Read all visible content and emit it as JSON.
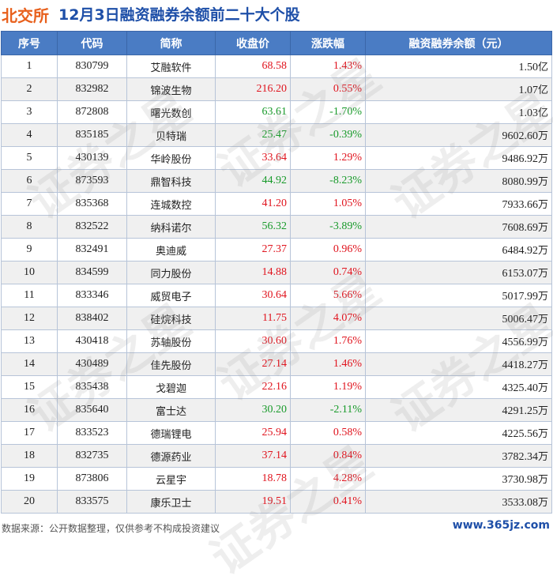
{
  "header": {
    "prefix": "北交所",
    "title": "12月3日融资融券余额前二十大个股"
  },
  "table": {
    "columns": [
      "序号",
      "代码",
      "简称",
      "收盘价",
      "涨跌幅",
      "融资融券余额（元）"
    ],
    "rows": [
      {
        "idx": "1",
        "code": "830799",
        "name": "艾融软件",
        "price": "68.58",
        "pct": "1.43%",
        "amt": "1.50",
        "unit": "亿",
        "dir": "up"
      },
      {
        "idx": "2",
        "code": "832982",
        "name": "锦波生物",
        "price": "216.20",
        "pct": "0.55%",
        "amt": "1.07",
        "unit": "亿",
        "dir": "up"
      },
      {
        "idx": "3",
        "code": "872808",
        "name": "曙光数创",
        "price": "63.61",
        "pct": "-1.70%",
        "amt": "1.03",
        "unit": "亿",
        "dir": "down"
      },
      {
        "idx": "4",
        "code": "835185",
        "name": "贝特瑞",
        "price": "25.47",
        "pct": "-0.39%",
        "amt": "9602.60",
        "unit": "万",
        "dir": "down"
      },
      {
        "idx": "5",
        "code": "430139",
        "name": "华岭股份",
        "price": "33.64",
        "pct": "1.29%",
        "amt": "9486.92",
        "unit": "万",
        "dir": "up"
      },
      {
        "idx": "6",
        "code": "873593",
        "name": "鼎智科技",
        "price": "44.92",
        "pct": "-8.23%",
        "amt": "8080.99",
        "unit": "万",
        "dir": "down"
      },
      {
        "idx": "7",
        "code": "835368",
        "name": "连城数控",
        "price": "41.20",
        "pct": "1.05%",
        "amt": "7933.66",
        "unit": "万",
        "dir": "up"
      },
      {
        "idx": "8",
        "code": "832522",
        "name": "纳科诺尔",
        "price": "56.32",
        "pct": "-3.89%",
        "amt": "7608.69",
        "unit": "万",
        "dir": "down"
      },
      {
        "idx": "9",
        "code": "832491",
        "name": "奥迪威",
        "price": "27.37",
        "pct": "0.96%",
        "amt": "6484.92",
        "unit": "万",
        "dir": "up"
      },
      {
        "idx": "10",
        "code": "834599",
        "name": "同力股份",
        "price": "14.88",
        "pct": "0.74%",
        "amt": "6153.07",
        "unit": "万",
        "dir": "up"
      },
      {
        "idx": "11",
        "code": "833346",
        "name": "威贸电子",
        "price": "30.64",
        "pct": "5.66%",
        "amt": "5017.99",
        "unit": "万",
        "dir": "up"
      },
      {
        "idx": "12",
        "code": "838402",
        "name": "硅烷科技",
        "price": "11.75",
        "pct": "4.07%",
        "amt": "5006.47",
        "unit": "万",
        "dir": "up"
      },
      {
        "idx": "13",
        "code": "430418",
        "name": "苏轴股份",
        "price": "30.60",
        "pct": "1.76%",
        "amt": "4556.99",
        "unit": "万",
        "dir": "up"
      },
      {
        "idx": "14",
        "code": "430489",
        "name": "佳先股份",
        "price": "27.14",
        "pct": "1.46%",
        "amt": "4418.27",
        "unit": "万",
        "dir": "up"
      },
      {
        "idx": "15",
        "code": "835438",
        "name": "戈碧迦",
        "price": "22.16",
        "pct": "1.19%",
        "amt": "4325.40",
        "unit": "万",
        "dir": "up"
      },
      {
        "idx": "16",
        "code": "835640",
        "name": "富士达",
        "price": "30.20",
        "pct": "-2.11%",
        "amt": "4291.25",
        "unit": "万",
        "dir": "down"
      },
      {
        "idx": "17",
        "code": "833523",
        "name": "德瑞锂电",
        "price": "25.94",
        "pct": "0.58%",
        "amt": "4225.56",
        "unit": "万",
        "dir": "up"
      },
      {
        "idx": "18",
        "code": "832735",
        "name": "德源药业",
        "price": "37.14",
        "pct": "0.84%",
        "amt": "3782.34",
        "unit": "万",
        "dir": "up"
      },
      {
        "idx": "19",
        "code": "873806",
        "name": "云星宇",
        "price": "18.78",
        "pct": "4.28%",
        "amt": "3730.98",
        "unit": "万",
        "dir": "up"
      },
      {
        "idx": "20",
        "code": "833575",
        "name": "康乐卫士",
        "price": "19.51",
        "pct": "0.41%",
        "amt": "3533.08",
        "unit": "万",
        "dir": "up"
      }
    ]
  },
  "watermark": {
    "text": "证券之星"
  },
  "footer": {
    "source": "数据来源：公开数据整理，仅供参考不构成投资建议",
    "site": "www.365jz.com"
  },
  "colors": {
    "up": "#e0141e",
    "down": "#189a2a",
    "header_bg": "#4a7cc4",
    "title": "#1e4fa8",
    "prefix": "#e8601c"
  }
}
